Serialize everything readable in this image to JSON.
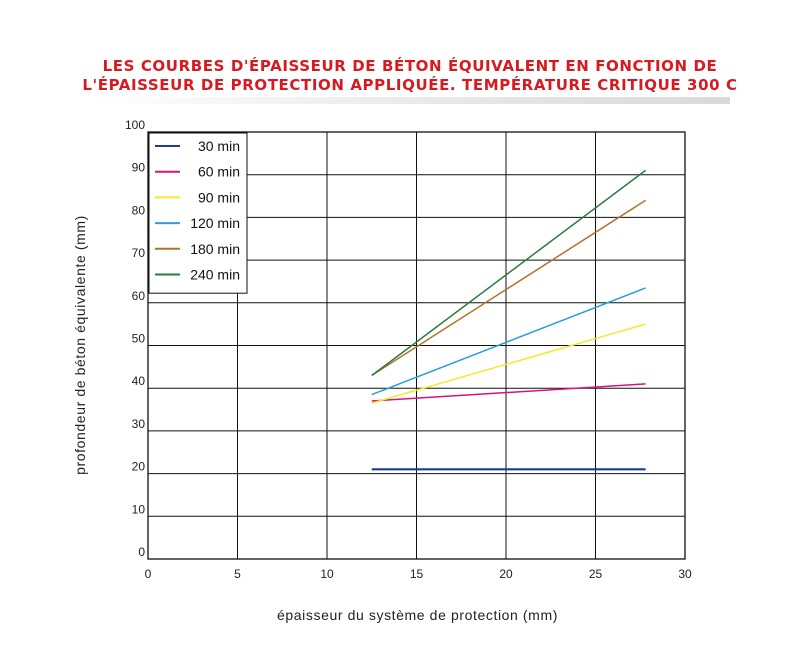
{
  "title_line1": "LES COURBES D'ÉPAISSEUR DE BÉTON ÉQUIVALENT EN FONCTION DE",
  "title_line2": "L'ÉPAISSEUR DE PROTECTION APPLIQUÉE. TEMPÉRATURE CRITIQUE 300 C",
  "chart_data": {
    "type": "line",
    "xlabel": "épaisseur du système de protection (mm)",
    "ylabel": "profondeur de béton équivalente (mm)",
    "xlim": [
      0,
      30
    ],
    "ylim": [
      0,
      100
    ],
    "x_ticks": [
      "0",
      "5",
      "10",
      "15",
      "20",
      "25",
      "30"
    ],
    "y_ticks": [
      "0",
      "10",
      "20",
      "30",
      "40",
      "50",
      "60",
      "70",
      "80",
      "90",
      "100"
    ],
    "grid": true,
    "legend_position": "top-left",
    "series": [
      {
        "name": "30 min",
        "color": "#1a3f8f",
        "x": [
          12.5,
          27.8
        ],
        "y": [
          21,
          21
        ]
      },
      {
        "name": "60 min",
        "color": "#d6137f",
        "x": [
          12.5,
          27.8
        ],
        "y": [
          37,
          41
        ]
      },
      {
        "name": "90 min",
        "color": "#f2ea2b",
        "x": [
          12.5,
          27.8
        ],
        "y": [
          36.5,
          55
        ]
      },
      {
        "name": "120 min",
        "color": "#2b9fd9",
        "x": [
          12.5,
          27.8
        ],
        "y": [
          38.5,
          63.5
        ]
      },
      {
        "name": "180 min",
        "color": "#b0742a",
        "x": [
          12.5,
          27.8
        ],
        "y": [
          43,
          84
        ]
      },
      {
        "name": "240 min",
        "color": "#2c7a3c",
        "x": [
          12.5,
          27.8
        ],
        "y": [
          43,
          91
        ]
      }
    ]
  }
}
